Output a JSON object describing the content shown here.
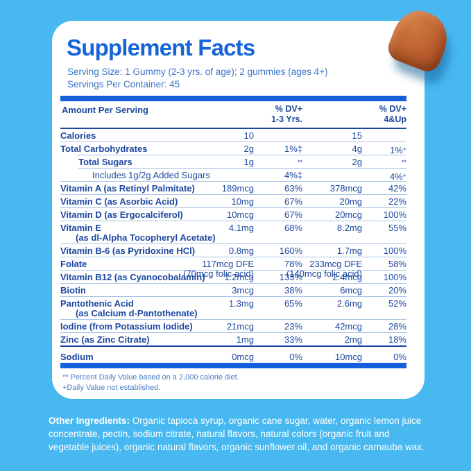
{
  "colors": {
    "background": "#48B8F0",
    "card": "#FFFFFF",
    "title_blue": "#1565D9",
    "serving_text_blue": "#3B74C8",
    "table_text_blue": "#1C47A0",
    "thick_bar_blue": "#145FDC",
    "thin_rule_blue": "#A6C4E6",
    "footnote_blue": "#4A7CC8",
    "gummy_orange": "#B95F2F"
  },
  "images": {
    "gummy": "orange-gummy-photo"
  },
  "header": {
    "title": "Supplement Facts",
    "serving_size": "Serving Size: 1 Gummy (2-3 yrs. of age); 2 gummies (ages 4+)",
    "servings_per_container": "Servings Per Container: 45"
  },
  "table": {
    "columns": {
      "amount_header": "Amount Per Serving",
      "dv1_line1": "% DV+",
      "dv1_line2": "1-3 Yrs.",
      "dv2_line1": "% DV+",
      "dv2_line2": "4&Up"
    },
    "rows": [
      {
        "name": "Calories",
        "amt1": "10",
        "pct1": "",
        "amt2": "15",
        "pct2": "",
        "sep": "thin",
        "sep_indent": 0
      },
      {
        "name": "Total Carbohydrates",
        "amt1": "2g",
        "pct1": "1%‡",
        "amt2": "4g",
        "pct2": "1%+",
        "sep": "thin",
        "sep_indent": 24
      },
      {
        "name": "Total Sugars",
        "indent": 26,
        "amt1": "1g",
        "pct1": "**",
        "amt2": "2g",
        "pct2": "**",
        "sep": "thin",
        "sep_indent": 26
      },
      {
        "name": "Includes 1g/2g Added Sugars",
        "indent": 46,
        "plain": true,
        "amt1": "",
        "pct1": "4%‡",
        "amt2": "",
        "pct2": "4%+",
        "sep": "thin",
        "sep_indent": 0
      },
      {
        "name": "Vitamin A (as Retinyl Palmitate)",
        "amt1": "189mcg",
        "pct1": "63%",
        "amt2": "378mcg",
        "pct2": "42%",
        "sep": "thin",
        "sep_indent": 0
      },
      {
        "name": "Vitamin C (as Asorbic Acid)",
        "amt1": "10mg",
        "pct1": "67%",
        "amt2": "20mg",
        "pct2": "22%",
        "sep": "thin",
        "sep_indent": 0
      },
      {
        "name": "Vitamin D (as Ergocalciferol)",
        "amt1": "10mcg",
        "pct1": "67%",
        "amt2": "20mcg",
        "pct2": "100%",
        "sep": "thin",
        "sep_indent": 0
      },
      {
        "name": "Vitamin E",
        "name2": "(as dl-Alpha Tocopheryl Acetate)",
        "amt1": "4.1mg",
        "pct1": "68%",
        "amt2": "8.2mg",
        "pct2": "55%",
        "sep": "thin",
        "sep_indent": 0
      },
      {
        "name": "Vitamin B-6 (as Pyridoxine HCl)",
        "amt1": "0.8mg",
        "pct1": "160%",
        "amt2": "1.7mg",
        "pct2": "100%",
        "sep": "thin",
        "sep_indent": 0
      },
      {
        "name": "Folate",
        "amt1": "117mcg DFE",
        "amt1b": "(70mcg folic acid)",
        "pct1": "78%",
        "amt2": "233mcg DFE",
        "amt2b": "(140mcg folic acid)",
        "pct2": "58%",
        "sep": "thin",
        "sep_indent": 0
      },
      {
        "name": "Vitamin B12 (as Cyanocobalamin)",
        "amt1": "1.2mcg",
        "pct1": "133%",
        "amt2": "2.4mcg",
        "pct2": "100%",
        "sep": "thin",
        "sep_indent": 0
      },
      {
        "name": "Biotin",
        "amt1": "3mcg",
        "pct1": "38%",
        "amt2": "6mcg",
        "pct2": "20%",
        "sep": "thin",
        "sep_indent": 0
      },
      {
        "name": "Pantothenic Acid",
        "name2": "(as Calcium d-Pantothenate)",
        "amt1": "1.3mg",
        "pct1": "65%",
        "amt2": "2.6mg",
        "pct2": "52%",
        "sep": "thin",
        "sep_indent": 0
      },
      {
        "name": "Iodine (from Potassium Iodide)",
        "amt1": "21mcg",
        "pct1": "23%",
        "amt2": "42mcg",
        "pct2": "28%",
        "sep": "thin",
        "sep_indent": 0
      },
      {
        "name": "Zinc (as Zinc Citrate)",
        "amt1": "1mg",
        "pct1": "33%",
        "amt2": "2mg",
        "pct2": "18%",
        "sep": "med",
        "sep_indent": 0
      },
      {
        "name": "Sodium",
        "padtop": true,
        "amt1": "0mcg",
        "pct1": "0%",
        "amt2": "10mcg",
        "pct2": "0%",
        "sep": "none",
        "sep_indent": 0
      }
    ],
    "footnotes": [
      "** Percent Daily Value based on a 2,000 calorie diet.",
      "+Daily Value not established."
    ]
  },
  "other_ingredients": {
    "label": "Other Ingredients:",
    "text": " Organic tapioca syrup, organic cane sugar, water, organic lemon juice concentrate, pectin, sodium citrate, natural flavors, natural colors (organic fruit and vegetable juices), organic natural flavors, organic sunflower oil, and organic carnauba wax."
  }
}
